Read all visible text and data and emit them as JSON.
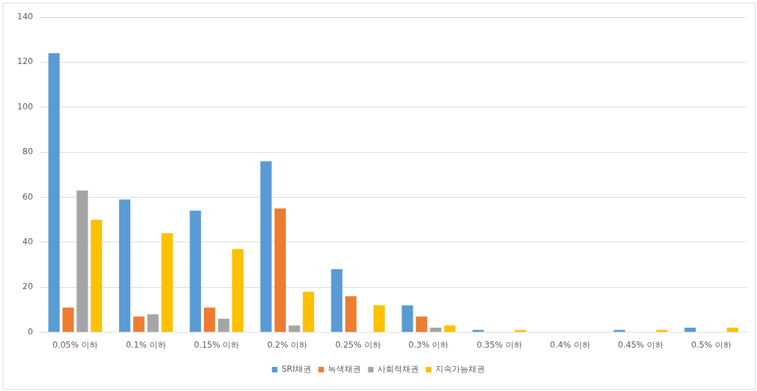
{
  "chart_data": {
    "type": "bar",
    "categories": [
      "0.05% 이하",
      "0.1% 이하",
      "0.15% 이하",
      "0.2% 이하",
      "0.25% 이하",
      "0.3% 이하",
      "0.35% 이하",
      "0.4% 이하",
      "0.45% 이하",
      "0.5% 이하"
    ],
    "series": [
      {
        "name": "SRI채권",
        "color": "#5b9bd5",
        "values": [
          124,
          59,
          54,
          76,
          28,
          12,
          1,
          0,
          1,
          2
        ]
      },
      {
        "name": "녹색채권",
        "color": "#ed7d31",
        "values": [
          11,
          7,
          11,
          55,
          16,
          7,
          0,
          0,
          0,
          0
        ]
      },
      {
        "name": "사회적채권",
        "color": "#a5a5a5",
        "values": [
          63,
          8,
          6,
          3,
          0,
          2,
          0,
          0,
          0,
          0
        ]
      },
      {
        "name": "지속가능채권",
        "color": "#ffc000",
        "values": [
          50,
          44,
          37,
          18,
          12,
          3,
          1,
          0,
          1,
          2
        ]
      }
    ],
    "ylim": [
      0,
      140
    ],
    "yticks": [
      0,
      20,
      40,
      60,
      80,
      100,
      120,
      140
    ],
    "grid": "y",
    "legend": "bottom"
  }
}
